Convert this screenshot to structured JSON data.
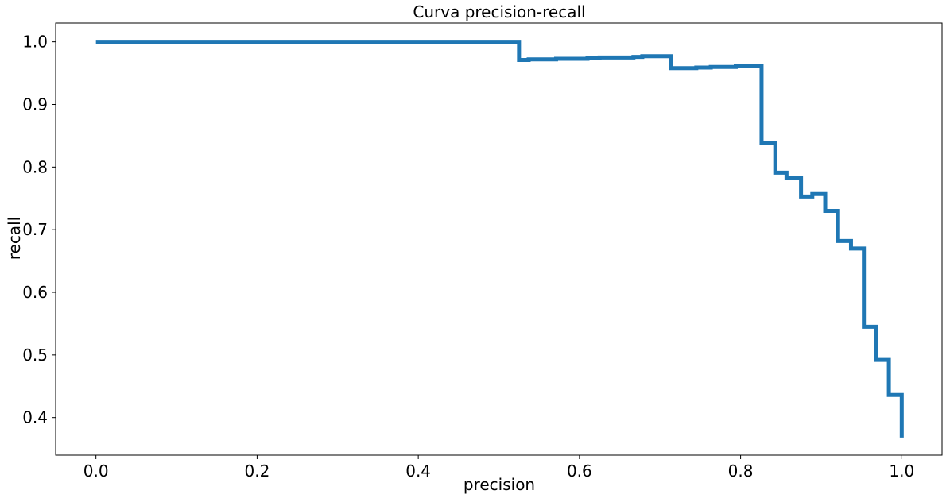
{
  "chart_data": {
    "type": "line",
    "title": "Curva precision-recall",
    "xlabel": "precision",
    "ylabel": "recall",
    "xlim": [
      -0.05,
      1.05
    ],
    "ylim": [
      0.34,
      1.03
    ],
    "xticks": [
      0.0,
      0.2,
      0.4,
      0.6,
      0.8,
      1.0
    ],
    "xtick_labels": [
      "0.0",
      "0.2",
      "0.4",
      "0.6",
      "0.8",
      "1.0"
    ],
    "yticks": [
      0.4,
      0.5,
      0.6,
      0.7,
      0.8,
      0.9,
      1.0
    ],
    "ytick_labels": [
      "0.4",
      "0.5",
      "0.6",
      "0.7",
      "0.8",
      "0.9",
      "1.0"
    ],
    "grid": false,
    "legend": "none",
    "series": [
      {
        "color": "#1f77b4",
        "drawstyle": "steps",
        "x": [
          0.0,
          0.525,
          0.525,
          0.537,
          0.537,
          0.571,
          0.571,
          0.61,
          0.61,
          0.625,
          0.625,
          0.667,
          0.667,
          0.678,
          0.678,
          0.714,
          0.714,
          0.745,
          0.745,
          0.763,
          0.763,
          0.794,
          0.794,
          0.826,
          0.826,
          0.843,
          0.843,
          0.857,
          0.857,
          0.875,
          0.875,
          0.889,
          0.889,
          0.905,
          0.905,
          0.921,
          0.921,
          0.937,
          0.937,
          0.953,
          0.953,
          0.968,
          0.968,
          0.984,
          0.984,
          1.0,
          1.0
        ],
        "y": [
          1.0,
          1.0,
          0.971,
          0.971,
          0.972,
          0.972,
          0.973,
          0.973,
          0.974,
          0.974,
          0.975,
          0.975,
          0.976,
          0.976,
          0.977,
          0.977,
          0.958,
          0.958,
          0.959,
          0.959,
          0.96,
          0.96,
          0.962,
          0.962,
          0.838,
          0.838,
          0.791,
          0.791,
          0.783,
          0.783,
          0.753,
          0.753,
          0.757,
          0.757,
          0.73,
          0.73,
          0.682,
          0.682,
          0.67,
          0.67,
          0.545,
          0.545,
          0.492,
          0.492,
          0.436,
          0.436,
          0.368
        ]
      }
    ]
  }
}
